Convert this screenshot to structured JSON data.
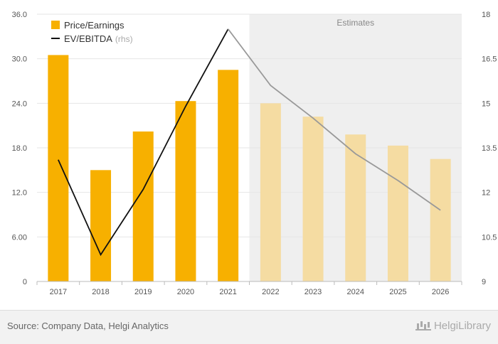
{
  "chart_data": {
    "type": "bar",
    "categories": [
      "2017",
      "2018",
      "2019",
      "2020",
      "2021",
      "2022",
      "2023",
      "2024",
      "2025",
      "2026"
    ],
    "estimates_start_index": 5,
    "estimates_label": "Estimates",
    "series": [
      {
        "name": "Price/Earnings",
        "type": "bar",
        "axis": "left",
        "values": [
          30.5,
          15.0,
          20.2,
          24.3,
          28.5,
          24.0,
          22.2,
          19.8,
          18.3,
          16.5
        ]
      },
      {
        "name": "EV/EBITDA",
        "name_suffix": "(rhs)",
        "type": "line",
        "axis": "right",
        "values": [
          13.1,
          9.9,
          12.1,
          14.9,
          17.5,
          15.6,
          14.5,
          13.3,
          12.4,
          11.4
        ]
      }
    ],
    "y_left": {
      "ylim": [
        0,
        36
      ],
      "ticks": [
        "0",
        "6.00",
        "12.0",
        "18.0",
        "24.0",
        "30.0",
        "36.0"
      ]
    },
    "y_right": {
      "ylim": [
        9,
        18
      ],
      "ticks": [
        "9",
        "10.5",
        "12",
        "13.5",
        "15",
        "16.5",
        "18"
      ]
    },
    "grid": true,
    "legend_position": "top-left"
  },
  "colors": {
    "bar_actual": "#f7b000",
    "bar_estimate": "#f5dca2",
    "line_actual": "#111111",
    "line_estimate": "#999999",
    "estimate_band": "#efefef",
    "grid": "#e6e6e6"
  },
  "footer": {
    "source": "Source: Company Data, Helgi Analytics",
    "brand": "HelgiLibrary",
    "brand_icon": "chart-bars-icon"
  }
}
